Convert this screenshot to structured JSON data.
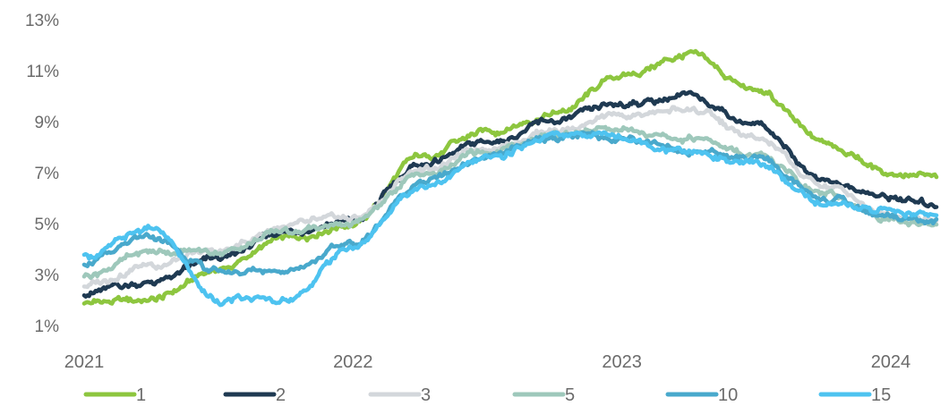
{
  "chart_data": {
    "type": "line",
    "title": "",
    "xlabel": "",
    "ylabel": "",
    "x_ticks": [
      "2021",
      "2022",
      "2023",
      "2024"
    ],
    "y_ticks": [
      "13%",
      "11%",
      "9%",
      "7%",
      "5%",
      "3%",
      "1%"
    ],
    "ylim": [
      1,
      13
    ],
    "xlim": [
      2021.0,
      2024.17
    ],
    "grid": false,
    "legend_position": "bottom",
    "x": [
      2021.0,
      2021.25,
      2021.5,
      2021.75,
      2022.0,
      2022.25,
      2022.5,
      2022.75,
      2023.0,
      2023.25,
      2023.5,
      2023.75,
      2024.0,
      2024.17
    ],
    "series": [
      {
        "name": "1",
        "color": "#8dc63f",
        "values": [
          1.9,
          2.0,
          3.2,
          4.4,
          5.0,
          7.6,
          8.6,
          9.3,
          10.8,
          11.6,
          10.2,
          8.2,
          7.0,
          6.8
        ]
      },
      {
        "name": "2",
        "color": "#1f3a52",
        "values": [
          2.3,
          2.7,
          3.6,
          4.7,
          5.1,
          7.3,
          8.2,
          9.0,
          9.7,
          10.0,
          8.9,
          6.7,
          6.0,
          5.7
        ]
      },
      {
        "name": "3",
        "color": "#d3d7db",
        "values": [
          2.6,
          3.4,
          3.9,
          4.9,
          5.2,
          7.1,
          8.0,
          8.7,
          9.2,
          9.5,
          8.3,
          6.5,
          5.4,
          5.1
        ]
      },
      {
        "name": "5",
        "color": "#9ec8bb",
        "values": [
          3.0,
          3.9,
          3.9,
          4.7,
          5.0,
          6.9,
          7.8,
          8.5,
          8.7,
          8.4,
          7.6,
          6.2,
          5.2,
          5.0
        ]
      },
      {
        "name": "10",
        "color": "#49a9cc",
        "values": [
          3.5,
          4.4,
          3.1,
          3.2,
          4.2,
          6.6,
          7.6,
          8.4,
          8.4,
          7.9,
          7.5,
          6.0,
          5.3,
          5.1
        ]
      },
      {
        "name": "15",
        "color": "#4ec3f0",
        "values": [
          3.7,
          4.8,
          2.0,
          2.0,
          4.1,
          6.5,
          7.5,
          8.5,
          8.4,
          7.8,
          7.3,
          5.8,
          5.5,
          5.3
        ]
      }
    ]
  }
}
